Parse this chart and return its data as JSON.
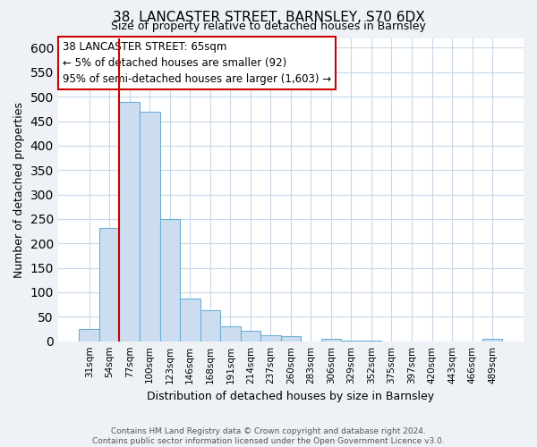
{
  "title": "38, LANCASTER STREET, BARNSLEY, S70 6DX",
  "subtitle": "Size of property relative to detached houses in Barnsley",
  "xlabel": "Distribution of detached houses by size in Barnsley",
  "ylabel": "Number of detached properties",
  "categories": [
    "31sqm",
    "54sqm",
    "77sqm",
    "100sqm",
    "123sqm",
    "146sqm",
    "168sqm",
    "191sqm",
    "214sqm",
    "237sqm",
    "260sqm",
    "283sqm",
    "306sqm",
    "329sqm",
    "352sqm",
    "375sqm",
    "397sqm",
    "420sqm",
    "443sqm",
    "466sqm",
    "489sqm"
  ],
  "values": [
    25,
    232,
    490,
    470,
    250,
    88,
    63,
    30,
    22,
    13,
    10,
    0,
    5,
    2,
    1,
    0,
    0,
    0,
    0,
    0,
    5
  ],
  "bar_color": "#ccddf0",
  "bar_edge_color": "#6aafd6",
  "vline_color": "#cc0000",
  "annotation_title": "38 LANCASTER STREET: 65sqm",
  "annotation_line1": "← 5% of detached houses are smaller (92)",
  "annotation_line2": "95% of semi-detached houses are larger (1,603) →",
  "annotation_box_color": "#ffffff",
  "annotation_box_edge": "#cc0000",
  "ylim": [
    0,
    620
  ],
  "yticks": [
    0,
    50,
    100,
    150,
    200,
    250,
    300,
    350,
    400,
    450,
    500,
    550,
    600
  ],
  "footer1": "Contains HM Land Registry data © Crown copyright and database right 2024.",
  "footer2": "Contains public sector information licensed under the Open Government Licence v3.0.",
  "bg_color": "#eef2f7",
  "plot_bg_color": "#ffffff",
  "grid_color": "#c8d8e8"
}
